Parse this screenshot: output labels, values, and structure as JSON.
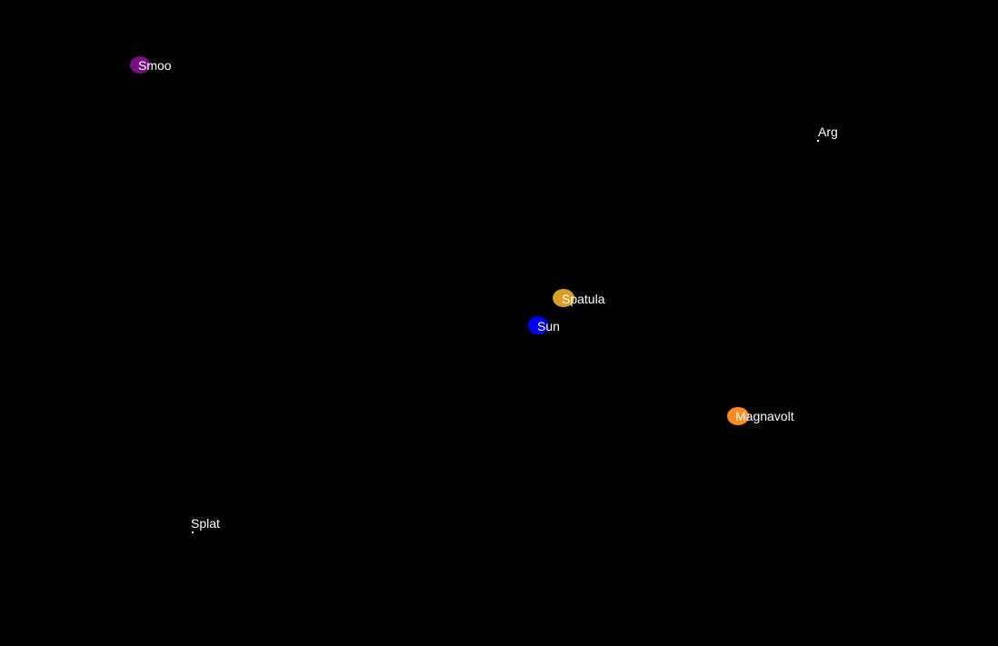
{
  "bodies": {
    "smoo": {
      "name": "Smoo",
      "color": "#7a0f86"
    },
    "arg": {
      "name": "Arg",
      "color": "#ffffff"
    },
    "spatula": {
      "name": "Spatula",
      "color": "#d9a023"
    },
    "sun": {
      "name": "Sun",
      "color": "#0000ff"
    },
    "magnavolt": {
      "name": "Magnavolt",
      "color": "#ff8c1a"
    },
    "splat": {
      "name": "Splat",
      "color": "#ffffff"
    }
  }
}
